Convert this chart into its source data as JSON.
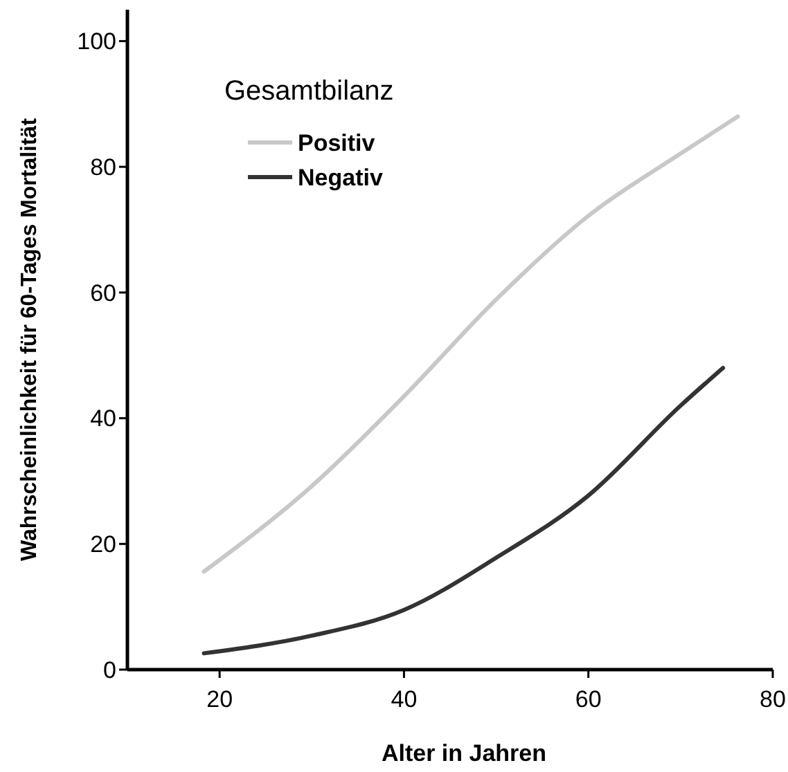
{
  "chart_data": {
    "type": "line",
    "xlabel": "Alter in Jahren",
    "ylabel": "Wahrscheinlichkeit für 60-Tages Mortalität",
    "legend_title": "Gesamtbilanz",
    "xlim": [
      10,
      80
    ],
    "xticks": [
      20,
      40,
      60,
      80
    ],
    "ylim": [
      0,
      105
    ],
    "yticks": [
      0,
      20,
      40,
      60,
      80,
      100
    ],
    "grid": false,
    "legend": "top left",
    "marker": "none",
    "line_style": "solid",
    "series": [
      {
        "name": "Positiv",
        "color": "#c8c8c8",
        "x": [
          18.3,
          30,
          40,
          50,
          60,
          70,
          76.2
        ],
        "values": [
          15.6,
          29.2,
          43.5,
          58.9,
          72.2,
          82.1,
          88
        ]
      },
      {
        "name": "Negativ",
        "color": "#333333",
        "x": [
          18.3,
          30,
          40,
          50,
          60,
          70,
          74.6
        ],
        "values": [
          2.6,
          5.4,
          9.5,
          17.8,
          27.7,
          42,
          48
        ]
      }
    ]
  }
}
